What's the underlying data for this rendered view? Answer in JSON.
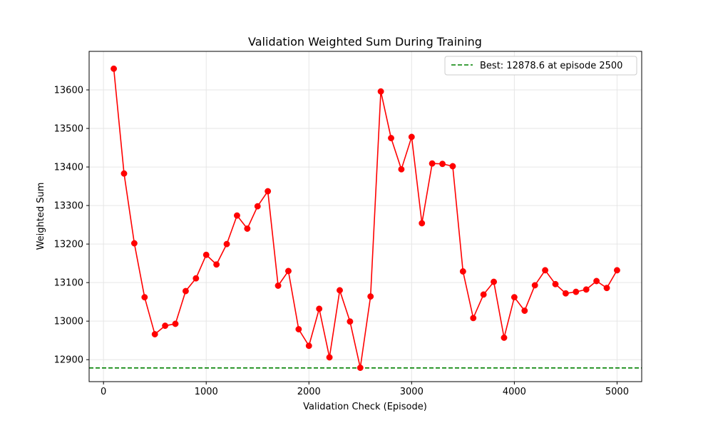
{
  "chart_data": {
    "type": "line",
    "title": "Validation Weighted Sum During Training",
    "xlabel": "Validation Check (Episode)",
    "ylabel": "Weighted Sum",
    "xlim": [
      -140,
      5240
    ],
    "ylim": [
      12843,
      13700
    ],
    "xticks": [
      0,
      1000,
      2000,
      3000,
      4000,
      5000
    ],
    "yticks": [
      12900,
      13000,
      13100,
      13200,
      13300,
      13400,
      13500,
      13600
    ],
    "grid": true,
    "legend_position": "top-right",
    "series": [
      {
        "color": "#ff0000",
        "marker": "circle",
        "x": [
          100,
          200,
          300,
          400,
          500,
          600,
          700,
          800,
          900,
          1000,
          1100,
          1200,
          1300,
          1400,
          1500,
          1600,
          1700,
          1800,
          1900,
          2000,
          2100,
          2200,
          2300,
          2400,
          2500,
          2600,
          2700,
          2800,
          2900,
          3000,
          3100,
          3200,
          3300,
          3400,
          3500,
          3600,
          3700,
          3800,
          3900,
          4000,
          4100,
          4200,
          4300,
          4400,
          4500,
          4600,
          4700,
          4800,
          4900,
          5000
        ],
        "y": [
          13655,
          13383,
          13202,
          13062,
          12966,
          12988,
          12993,
          13078,
          13111,
          13172,
          13147,
          13200,
          13274,
          13240,
          13298,
          13337,
          13092,
          13130,
          12979,
          12936,
          13032,
          12906,
          13080,
          12999,
          12879,
          13064,
          13596,
          13475,
          13394,
          13478,
          13254,
          13409,
          13408,
          13402,
          13129,
          13008,
          13069,
          13102,
          12957,
          13062,
          13027,
          13093,
          13132,
          13096,
          13072,
          13076,
          13082,
          13104,
          13086,
          13132
        ]
      }
    ],
    "reference_line": {
      "label": "Best: 12878.6 at episode 2500",
      "y": 12878.6,
      "color": "#008000",
      "style": "dashed"
    }
  }
}
